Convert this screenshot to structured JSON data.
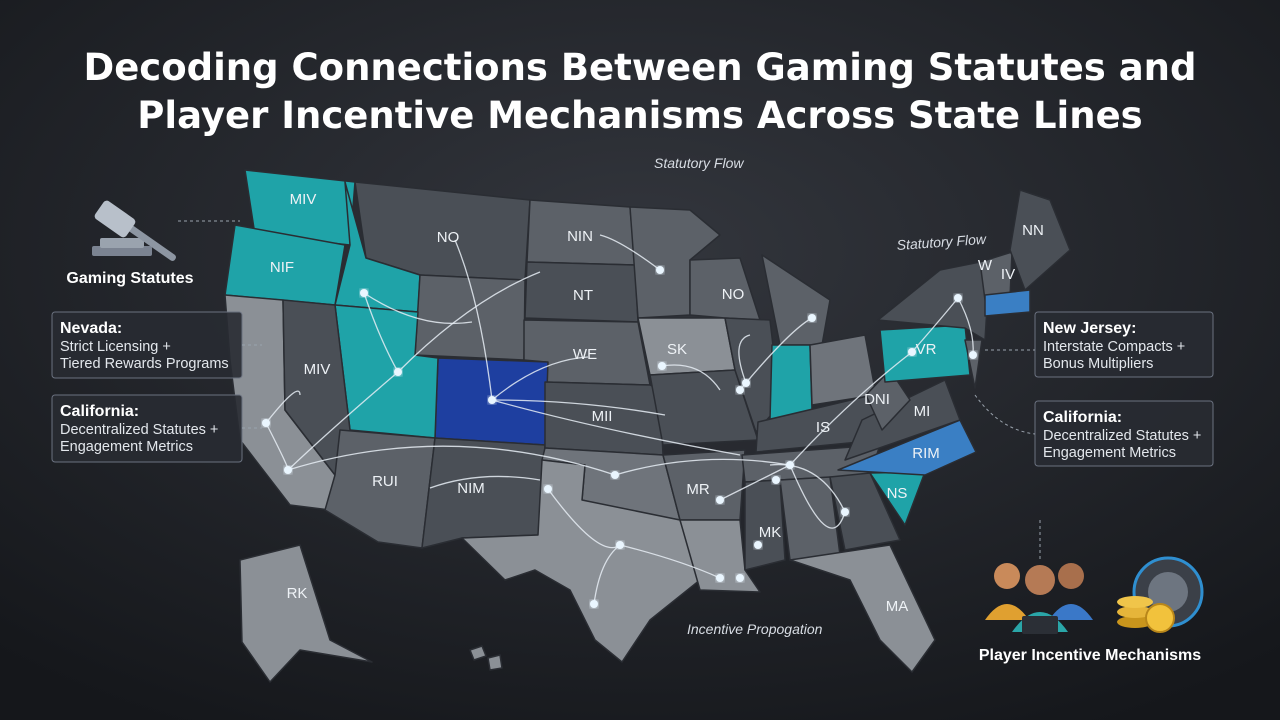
{
  "title": {
    "lines": [
      "Decoding Connections Between Gaming Statutes and",
      "Player Incentive Mechanisms Across State Lines"
    ]
  },
  "flow_labels": [
    "Statutory Flow",
    "Statutory Flow",
    "Incentive Propogation"
  ],
  "icons": {
    "gaming_statutes": "Gaming Statutes",
    "player_incentives": "Player Incentive Mechanisms"
  },
  "callouts": [
    {
      "heading": "Nevada:",
      "lines": [
        "Strict Licensing +",
        "Tiered Rewards Programs"
      ]
    },
    {
      "heading": "California:",
      "lines": [
        "Decentralized Statutes +",
        "Engagement Metrics"
      ]
    },
    {
      "heading": "New Jersey:",
      "lines": [
        "Interstate Compacts +",
        "Bonus Multipliers"
      ]
    },
    {
      "heading": "California:",
      "lines": [
        "Decentralized Statutes +",
        "Engagement Metrics"
      ]
    }
  ],
  "state_labels": [
    "MIV",
    "NIF",
    "NO",
    "NIN",
    "NT",
    "WE",
    "SK",
    "NO",
    "MIV",
    "MII",
    "IS",
    "DNI",
    "MI",
    "VR",
    "RIM",
    "NS",
    "MR",
    "MK",
    "NIM",
    "RUI",
    "RK",
    "MA",
    "W",
    "IV",
    "NN"
  ]
}
